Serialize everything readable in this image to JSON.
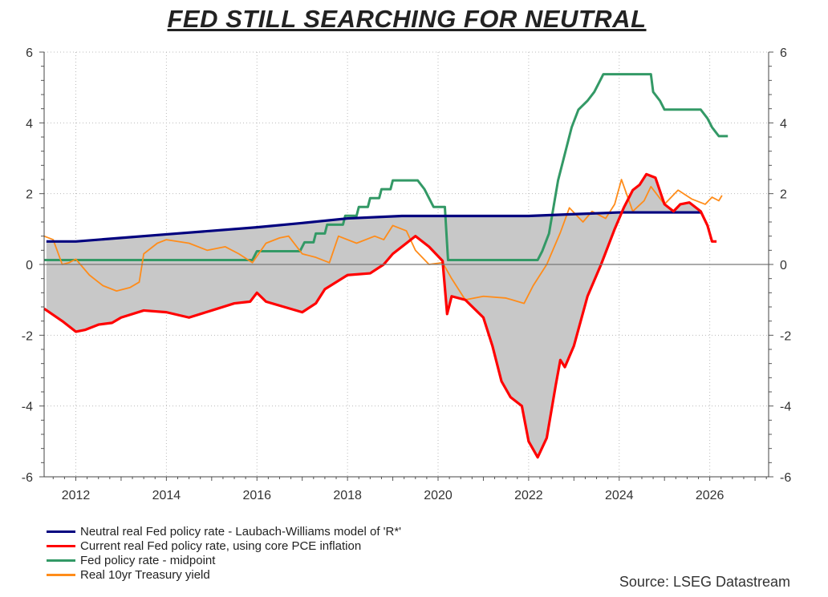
{
  "chart_data": {
    "type": "line",
    "title": "FED STILL SEARCHING FOR NEUTRAL",
    "xlim": [
      2011.3,
      2027.3
    ],
    "ylim": [
      -6,
      6
    ],
    "x_ticks": [
      "2012",
      "2014",
      "2016",
      "2018",
      "2020",
      "2022",
      "2024",
      "2026"
    ],
    "y_ticks_left": [
      "6",
      "4",
      "2",
      "0",
      "-2",
      "-4",
      "-6"
    ],
    "y_ticks_right": [
      "6",
      "4",
      "2",
      "0",
      "-2",
      "-4",
      "-6"
    ],
    "grid": true,
    "legend_position": "bottom-left",
    "shading": "gray area between neutral real rate and current real rate",
    "source": "Source: LSEG Datastream",
    "series": [
      {
        "name": "Neutral real Fed policy rate - Laubach-Williams model of 'R*'",
        "color": "#00007f",
        "points": [
          [
            2011.35,
            0.65
          ],
          [
            2012,
            0.65
          ],
          [
            2013,
            0.75
          ],
          [
            2014,
            0.85
          ],
          [
            2015,
            0.95
          ],
          [
            2016,
            1.05
          ],
          [
            2017,
            1.17
          ],
          [
            2018,
            1.3
          ],
          [
            2019.2,
            1.37
          ],
          [
            2020,
            1.37
          ],
          [
            2021,
            1.37
          ],
          [
            2022,
            1.37
          ],
          [
            2023,
            1.42
          ],
          [
            2024,
            1.47
          ],
          [
            2025.83,
            1.47
          ]
        ]
      },
      {
        "name": "Current real Fed policy rate, using core PCE inflation",
        "color": "#ff0000",
        "points": [
          [
            2011.3,
            -1.25
          ],
          [
            2011.7,
            -1.6
          ],
          [
            2012,
            -1.9
          ],
          [
            2012.2,
            -1.85
          ],
          [
            2012.5,
            -1.7
          ],
          [
            2012.8,
            -1.65
          ],
          [
            2013,
            -1.5
          ],
          [
            2013.5,
            -1.3
          ],
          [
            2014,
            -1.35
          ],
          [
            2014.5,
            -1.5
          ],
          [
            2015,
            -1.3
          ],
          [
            2015.5,
            -1.1
          ],
          [
            2015.85,
            -1.05
          ],
          [
            2016,
            -0.8
          ],
          [
            2016.2,
            -1.05
          ],
          [
            2016.6,
            -1.2
          ],
          [
            2017,
            -1.35
          ],
          [
            2017.3,
            -1.1
          ],
          [
            2017.5,
            -0.7
          ],
          [
            2018,
            -0.3
          ],
          [
            2018.5,
            -0.25
          ],
          [
            2018.8,
            0.0
          ],
          [
            2019,
            0.3
          ],
          [
            2019.5,
            0.8
          ],
          [
            2019.8,
            0.5
          ],
          [
            2020.1,
            0.1
          ],
          [
            2020.2,
            -1.4
          ],
          [
            2020.3,
            -0.9
          ],
          [
            2020.6,
            -1.0
          ],
          [
            2021,
            -1.5
          ],
          [
            2021.2,
            -2.3
          ],
          [
            2021.4,
            -3.3
          ],
          [
            2021.6,
            -3.75
          ],
          [
            2021.85,
            -4.0
          ],
          [
            2022.0,
            -5.0
          ],
          [
            2022.2,
            -5.45
          ],
          [
            2022.4,
            -4.9
          ],
          [
            2022.6,
            -3.4
          ],
          [
            2022.7,
            -2.7
          ],
          [
            2022.8,
            -2.9
          ],
          [
            2023.0,
            -2.3
          ],
          [
            2023.3,
            -0.9
          ],
          [
            2023.6,
            0.0
          ],
          [
            2023.9,
            1.0
          ],
          [
            2024.1,
            1.6
          ],
          [
            2024.3,
            2.1
          ],
          [
            2024.45,
            2.25
          ],
          [
            2024.6,
            2.55
          ],
          [
            2024.8,
            2.45
          ],
          [
            2025.0,
            1.7
          ],
          [
            2025.2,
            1.5
          ],
          [
            2025.35,
            1.7
          ],
          [
            2025.55,
            1.75
          ],
          [
            2025.8,
            1.5
          ],
          [
            2025.95,
            1.1
          ],
          [
            2026.05,
            0.65
          ],
          [
            2026.15,
            0.65
          ]
        ]
      },
      {
        "name": "Fed policy rate - midpoint",
        "color": "#339966",
        "points": [
          [
            2011.3,
            0.125
          ],
          [
            2015.9,
            0.125
          ],
          [
            2016.0,
            0.375
          ],
          [
            2016.95,
            0.375
          ],
          [
            2017.05,
            0.625
          ],
          [
            2017.25,
            0.625
          ],
          [
            2017.3,
            0.875
          ],
          [
            2017.5,
            0.875
          ],
          [
            2017.55,
            1.125
          ],
          [
            2017.9,
            1.125
          ],
          [
            2017.95,
            1.375
          ],
          [
            2018.2,
            1.375
          ],
          [
            2018.25,
            1.625
          ],
          [
            2018.45,
            1.625
          ],
          [
            2018.5,
            1.875
          ],
          [
            2018.7,
            1.875
          ],
          [
            2018.75,
            2.125
          ],
          [
            2018.95,
            2.125
          ],
          [
            2019.0,
            2.375
          ],
          [
            2019.55,
            2.375
          ],
          [
            2019.7,
            2.125
          ],
          [
            2019.8,
            1.875
          ],
          [
            2019.9,
            1.625
          ],
          [
            2020.15,
            1.625
          ],
          [
            2020.22,
            0.125
          ],
          [
            2022.2,
            0.125
          ],
          [
            2022.3,
            0.375
          ],
          [
            2022.45,
            0.875
          ],
          [
            2022.55,
            1.625
          ],
          [
            2022.65,
            2.375
          ],
          [
            2022.8,
            3.125
          ],
          [
            2022.95,
            3.875
          ],
          [
            2023.1,
            4.375
          ],
          [
            2023.3,
            4.625
          ],
          [
            2023.45,
            4.875
          ],
          [
            2023.55,
            5.125
          ],
          [
            2023.65,
            5.375
          ],
          [
            2024.7,
            5.375
          ],
          [
            2024.75,
            4.875
          ],
          [
            2024.9,
            4.625
          ],
          [
            2025.0,
            4.375
          ],
          [
            2025.8,
            4.375
          ],
          [
            2025.95,
            4.125
          ],
          [
            2026.05,
            3.875
          ],
          [
            2026.2,
            3.625
          ],
          [
            2026.4,
            3.625
          ]
        ]
      },
      {
        "name": "Real 10yr Treasury yield",
        "color": "#ff8c1a",
        "points": [
          [
            2011.3,
            0.8
          ],
          [
            2011.5,
            0.7
          ],
          [
            2011.7,
            0.0
          ],
          [
            2011.85,
            0.05
          ],
          [
            2012.0,
            0.15
          ],
          [
            2012.3,
            -0.3
          ],
          [
            2012.6,
            -0.6
          ],
          [
            2012.9,
            -0.75
          ],
          [
            2013.2,
            -0.65
          ],
          [
            2013.4,
            -0.5
          ],
          [
            2013.5,
            0.3
          ],
          [
            2013.8,
            0.6
          ],
          [
            2014.0,
            0.7
          ],
          [
            2014.5,
            0.6
          ],
          [
            2014.9,
            0.4
          ],
          [
            2015.3,
            0.5
          ],
          [
            2015.6,
            0.3
          ],
          [
            2015.9,
            0.05
          ],
          [
            2016.2,
            0.6
          ],
          [
            2016.5,
            0.75
          ],
          [
            2016.7,
            0.8
          ],
          [
            2017.0,
            0.3
          ],
          [
            2017.3,
            0.2
          ],
          [
            2017.6,
            0.05
          ],
          [
            2017.8,
            0.8
          ],
          [
            2018.2,
            0.6
          ],
          [
            2018.6,
            0.8
          ],
          [
            2018.8,
            0.7
          ],
          [
            2019.0,
            1.1
          ],
          [
            2019.3,
            0.95
          ],
          [
            2019.5,
            0.4
          ],
          [
            2019.8,
            0.0
          ],
          [
            2020.1,
            0.05
          ],
          [
            2020.3,
            -0.4
          ],
          [
            2020.6,
            -1.0
          ],
          [
            2021.0,
            -0.9
          ],
          [
            2021.5,
            -0.95
          ],
          [
            2021.9,
            -1.1
          ],
          [
            2022.1,
            -0.6
          ],
          [
            2022.4,
            0.0
          ],
          [
            2022.7,
            0.9
          ],
          [
            2022.9,
            1.6
          ],
          [
            2023.2,
            1.2
          ],
          [
            2023.4,
            1.5
          ],
          [
            2023.7,
            1.3
          ],
          [
            2023.9,
            1.7
          ],
          [
            2024.05,
            2.4
          ],
          [
            2024.3,
            1.5
          ],
          [
            2024.55,
            1.8
          ],
          [
            2024.7,
            2.2
          ],
          [
            2025.0,
            1.7
          ],
          [
            2025.3,
            2.1
          ],
          [
            2025.6,
            1.85
          ],
          [
            2025.9,
            1.7
          ],
          [
            2026.05,
            1.9
          ],
          [
            2026.2,
            1.8
          ],
          [
            2026.27,
            1.95
          ]
        ]
      }
    ]
  }
}
